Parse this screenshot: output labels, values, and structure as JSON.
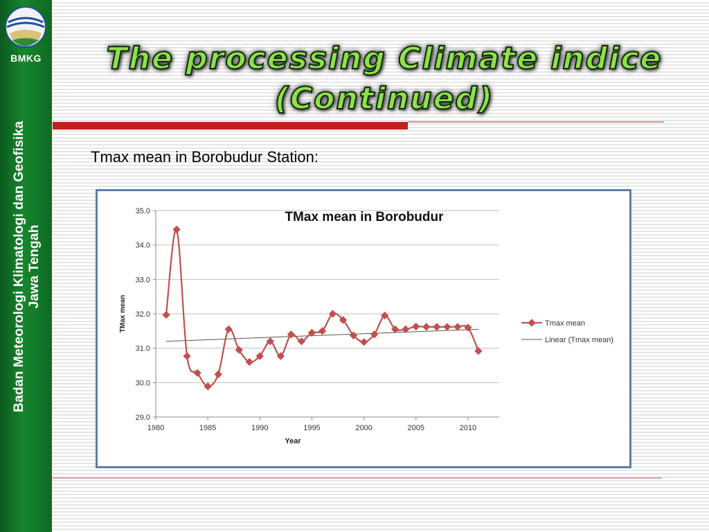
{
  "sidebar": {
    "logo_label": "BMKG",
    "org_line1": "Badan Meteorologi Klimatologi dan Geofisika",
    "org_line2": "Jawa Tengah"
  },
  "slide": {
    "title_line1": "The processing Climate indice",
    "title_line2": "(Continued)",
    "subtitle": "Tmax mean in Borobudur Station:"
  },
  "colors": {
    "sidebar_green": "#17862e",
    "title_green": "#8fe04a",
    "accent_red": "#c21f1f",
    "series_color": "#c0504d",
    "chart_border": "#5b7fa8"
  },
  "chart_data": {
    "type": "line",
    "title": "TMax mean in Borobudur",
    "xlabel": "Year",
    "ylabel": "TMax mean",
    "xlim": [
      1980,
      2013
    ],
    "ylim": [
      29.0,
      35.0
    ],
    "x_ticks": [
      "1980",
      "1985",
      "1990",
      "1995",
      "2000",
      "2005",
      "2010"
    ],
    "y_ticks": [
      "29.0",
      "30.0",
      "31.0",
      "32.0",
      "33.0",
      "34.0",
      "35.0"
    ],
    "grid": "horizontal",
    "legend_position": "right",
    "series": [
      {
        "name": "Tmax mean",
        "x": [
          1981,
          1982,
          1983,
          1984,
          1985,
          1986,
          1987,
          1988,
          1989,
          1990,
          1991,
          1992,
          1993,
          1994,
          1995,
          1996,
          1997,
          1998,
          1999,
          2000,
          2001,
          2002,
          2003,
          2004,
          2005,
          2006,
          2007,
          2008,
          2009,
          2010,
          2011
        ],
        "y": [
          31.97,
          34.45,
          30.77,
          30.28,
          29.89,
          30.24,
          31.55,
          30.95,
          30.6,
          30.77,
          31.2,
          30.77,
          31.4,
          31.2,
          31.45,
          31.5,
          32.0,
          31.82,
          31.37,
          31.18,
          31.4,
          31.95,
          31.55,
          31.55,
          31.63,
          31.62,
          31.62,
          31.62,
          31.62,
          31.6,
          30.92
        ]
      },
      {
        "name": "Linear (Tmax mean)",
        "x": [
          1981,
          2011
        ],
        "y": [
          31.2,
          31.55
        ]
      }
    ]
  }
}
